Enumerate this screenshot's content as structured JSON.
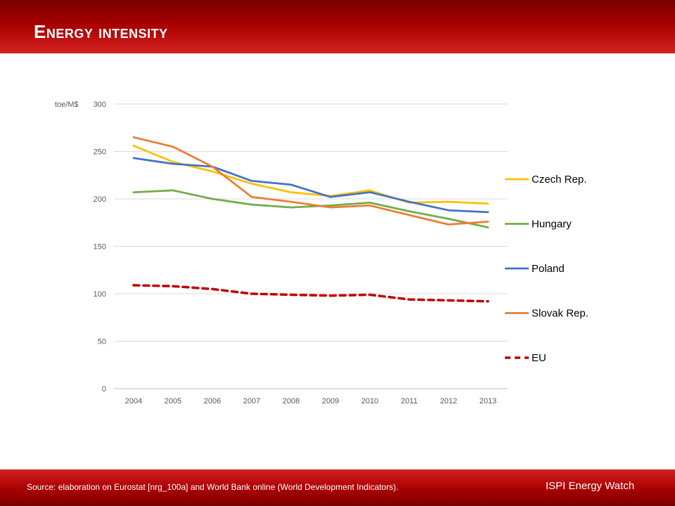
{
  "slide": {
    "title": "Energy intensity",
    "source": "Source: elaboration on Eurostat [nrg_100a] and World Bank online (World Development Indicators).",
    "brand": "ISPI Energy Watch",
    "colors": {
      "header": "#a80000"
    }
  },
  "chart_data": {
    "type": "line",
    "ylabel": "toe/M$",
    "categories": [
      "2004",
      "2005",
      "2006",
      "2007",
      "2008",
      "2009",
      "2010",
      "2011",
      "2012",
      "2013"
    ],
    "ylim": [
      0,
      300
    ],
    "yticks": [
      0,
      50,
      100,
      150,
      200,
      250,
      300
    ],
    "grid": true,
    "legend_position": "right",
    "series": [
      {
        "name": "Czech Rep.",
        "color": "#FFC000",
        "dashed": false,
        "values": [
          256,
          239,
          229,
          216,
          207,
          203,
          209,
          196,
          197,
          195
        ]
      },
      {
        "name": "Hungary",
        "color": "#70AD47",
        "dashed": false,
        "values": [
          207,
          209,
          200,
          194,
          191,
          193,
          196,
          187,
          179,
          170
        ]
      },
      {
        "name": "Poland",
        "color": "#4472C4",
        "dashed": false,
        "values": [
          243,
          237,
          234,
          219,
          215,
          202,
          207,
          197,
          188,
          186
        ]
      },
      {
        "name": "Slovak Rep.",
        "color": "#ED7D31",
        "dashed": false,
        "values": [
          265,
          255,
          234,
          202,
          197,
          191,
          193,
          183,
          173,
          176
        ]
      },
      {
        "name": "EU",
        "color": "#C00000",
        "dashed": true,
        "values": [
          109,
          108,
          105,
          100,
          99,
          98,
          99,
          94,
          93,
          92
        ]
      }
    ]
  }
}
